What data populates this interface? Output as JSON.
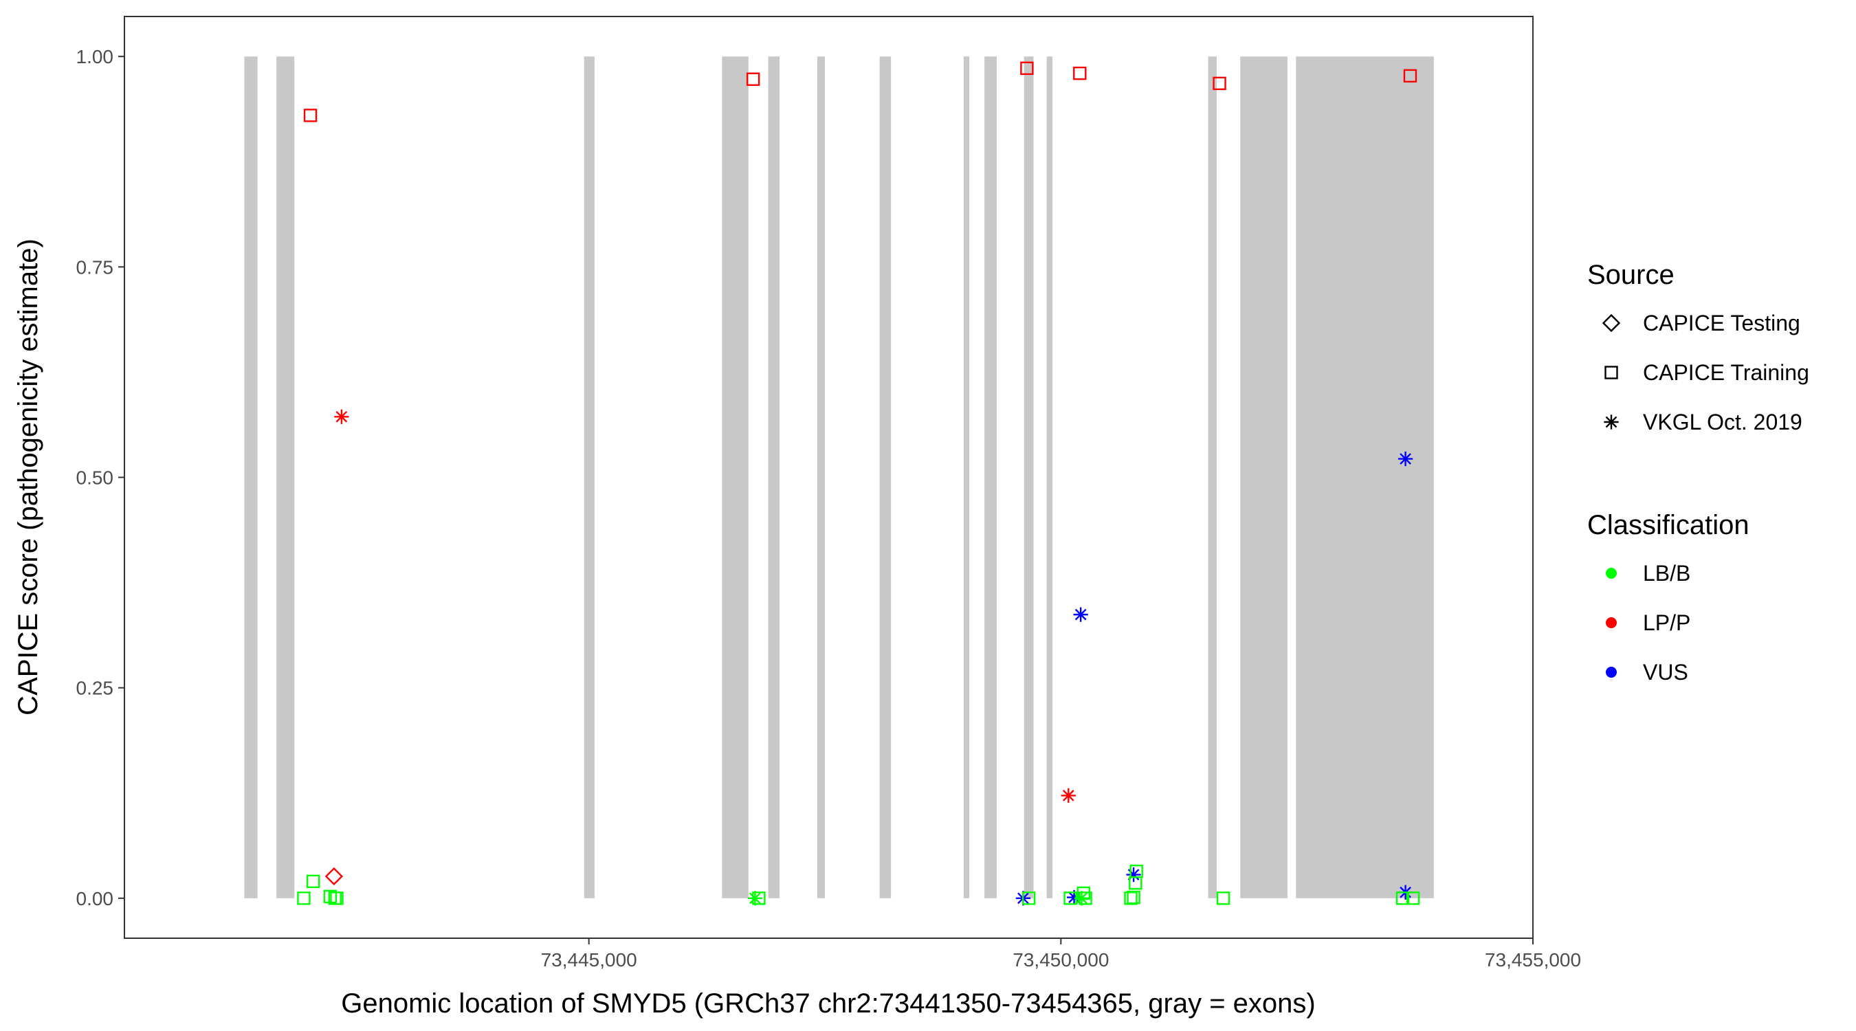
{
  "chart_data": {
    "type": "scatter",
    "xlabel": "Genomic location of SMYD5 (GRCh37 chr2:73441350-73454365, gray = exons)",
    "ylabel": "CAPICE score (pathogenicity estimate)",
    "xlim": [
      73440080,
      73455000
    ],
    "ylim": [
      -0.0475,
      1.0475
    ],
    "x_ticks": [
      73445000,
      73450000,
      73455000
    ],
    "x_tick_labels": [
      "73,445,000",
      "73,450,000",
      "73,455,000"
    ],
    "y_ticks": [
      0,
      0.25,
      0.5,
      0.75,
      1.0
    ],
    "y_tick_labels": [
      "0.00",
      "0.25",
      "0.50",
      "0.75",
      "1.00"
    ],
    "grid": false,
    "exons": [
      [
        73441350,
        73441490
      ],
      [
        73441690,
        73441880
      ],
      [
        73444950,
        73445060
      ],
      [
        73446410,
        73446690
      ],
      [
        73446900,
        73447020
      ],
      [
        73447420,
        73447500
      ],
      [
        73448080,
        73448200
      ],
      [
        73448970,
        73449030
      ],
      [
        73449190,
        73449320
      ],
      [
        73449610,
        73449710
      ],
      [
        73449850,
        73449910
      ],
      [
        73451560,
        73451650
      ],
      [
        73451900,
        73452400
      ],
      [
        73452490,
        73453950
      ]
    ],
    "exon_color": "#c8c8c8",
    "legend": {
      "position": "right",
      "source_title": "Source",
      "source_items": [
        {
          "label": "CAPICE Testing",
          "shape": "diamond"
        },
        {
          "label": "CAPICE Training",
          "shape": "square"
        },
        {
          "label": "VKGL Oct. 2019",
          "shape": "asterisk"
        }
      ],
      "classification_title": "Classification",
      "classification_items": [
        {
          "label": "LB/B",
          "color": "#00ff00"
        },
        {
          "label": "LP/P",
          "color": "#ff0000"
        },
        {
          "label": "VUS",
          "color": "#0000ff"
        }
      ]
    },
    "points": [
      {
        "x": 73442050,
        "y": 0.93,
        "source": "CAPICE Training",
        "class": "LP/P"
      },
      {
        "x": 73446740,
        "y": 0.973,
        "source": "CAPICE Training",
        "class": "LP/P"
      },
      {
        "x": 73449640,
        "y": 0.986,
        "source": "CAPICE Training",
        "class": "LP/P"
      },
      {
        "x": 73450200,
        "y": 0.98,
        "source": "CAPICE Training",
        "class": "LP/P"
      },
      {
        "x": 73451680,
        "y": 0.968,
        "source": "CAPICE Training",
        "class": "LP/P"
      },
      {
        "x": 73453700,
        "y": 0.977,
        "source": "CAPICE Training",
        "class": "LP/P"
      },
      {
        "x": 73442380,
        "y": 0.572,
        "source": "VKGL Oct. 2019",
        "class": "LP/P"
      },
      {
        "x": 73450080,
        "y": 0.122,
        "source": "VKGL Oct. 2019",
        "class": "LP/P"
      },
      {
        "x": 73442300,
        "y": 0.026,
        "source": "CAPICE Testing",
        "class": "LP/P"
      },
      {
        "x": 73453650,
        "y": 0.522,
        "source": "VKGL Oct. 2019",
        "class": "VUS"
      },
      {
        "x": 73450210,
        "y": 0.337,
        "source": "VKGL Oct. 2019",
        "class": "VUS"
      },
      {
        "x": 73450770,
        "y": 0.028,
        "source": "VKGL Oct. 2019",
        "class": "VUS"
      },
      {
        "x": 73449600,
        "y": 0.0,
        "source": "VKGL Oct. 2019",
        "class": "VUS"
      },
      {
        "x": 73450140,
        "y": 0.001,
        "source": "VKGL Oct. 2019",
        "class": "VUS"
      },
      {
        "x": 73453650,
        "y": 0.007,
        "source": "VKGL Oct. 2019",
        "class": "VUS"
      },
      {
        "x": 73441980,
        "y": 0.0,
        "source": "CAPICE Training",
        "class": "LB/B"
      },
      {
        "x": 73442080,
        "y": 0.02,
        "source": "CAPICE Training",
        "class": "LB/B"
      },
      {
        "x": 73442260,
        "y": 0.002,
        "source": "CAPICE Training",
        "class": "LB/B"
      },
      {
        "x": 73442310,
        "y": 0.0,
        "source": "CAPICE Training",
        "class": "LB/B"
      },
      {
        "x": 73442330,
        "y": 0.0,
        "source": "CAPICE Training",
        "class": "LB/B"
      },
      {
        "x": 73446800,
        "y": 0.0,
        "source": "CAPICE Training",
        "class": "LB/B"
      },
      {
        "x": 73446760,
        "y": 0.0,
        "source": "VKGL Oct. 2019",
        "class": "LB/B"
      },
      {
        "x": 73449660,
        "y": 0.0,
        "source": "CAPICE Training",
        "class": "LB/B"
      },
      {
        "x": 73450100,
        "y": 0.0,
        "source": "CAPICE Training",
        "class": "LB/B"
      },
      {
        "x": 73450240,
        "y": 0.006,
        "source": "CAPICE Training",
        "class": "LB/B"
      },
      {
        "x": 73450260,
        "y": 0.0,
        "source": "CAPICE Training",
        "class": "LB/B"
      },
      {
        "x": 73450220,
        "y": 0.0,
        "source": "VKGL Oct. 2019",
        "class": "LB/B"
      },
      {
        "x": 73450740,
        "y": 0.0,
        "source": "CAPICE Training",
        "class": "LB/B"
      },
      {
        "x": 73450770,
        "y": 0.001,
        "source": "CAPICE Training",
        "class": "LB/B"
      },
      {
        "x": 73450790,
        "y": 0.018,
        "source": "CAPICE Training",
        "class": "LB/B"
      },
      {
        "x": 73450800,
        "y": 0.032,
        "source": "CAPICE Training",
        "class": "LB/B"
      },
      {
        "x": 73451720,
        "y": 0.0,
        "source": "CAPICE Training",
        "class": "LB/B"
      },
      {
        "x": 73453620,
        "y": 0.0,
        "source": "CAPICE Training",
        "class": "LB/B"
      },
      {
        "x": 73453730,
        "y": 0.0,
        "source": "CAPICE Training",
        "class": "LB/B"
      }
    ]
  }
}
